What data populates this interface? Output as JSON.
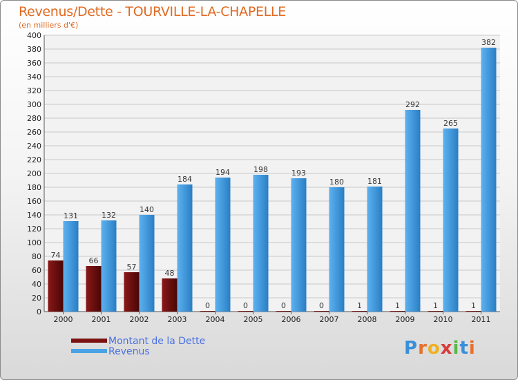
{
  "chart_data": {
    "type": "bar",
    "title": "Revenus/Dette - TOURVILLE-LA-CHAPELLE",
    "subtitle": "(en milliers d'€)",
    "xlabel": "",
    "ylabel": "",
    "ylim": [
      0,
      400
    ],
    "ytick_step": 20,
    "grid": true,
    "categories": [
      "2000",
      "2001",
      "2002",
      "2003",
      "2004",
      "2005",
      "2006",
      "2007",
      "2008",
      "2009",
      "2010",
      "2011"
    ],
    "series": [
      {
        "name": "Montant de la Dette",
        "color": "#7a1010",
        "values": [
          74,
          66,
          57,
          48,
          0,
          0,
          0,
          0,
          1,
          1,
          1,
          1
        ]
      },
      {
        "name": "Revenus",
        "color": "#4aa3e6",
        "values": [
          131,
          132,
          140,
          184,
          194,
          198,
          193,
          180,
          181,
          292,
          265,
          382
        ]
      }
    ],
    "legend_position": "bottom-left"
  },
  "brand": {
    "text": "Proxiti"
  }
}
